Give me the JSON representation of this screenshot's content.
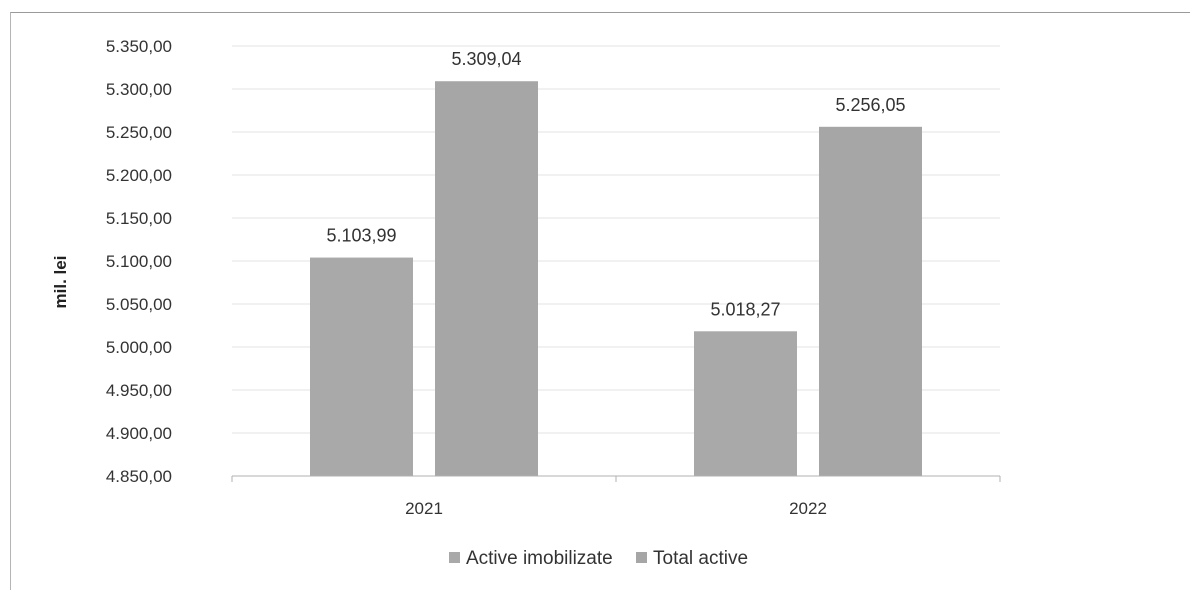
{
  "chart_data": {
    "type": "bar",
    "categories": [
      "2021",
      "2022"
    ],
    "series": [
      {
        "name": "Active imobilizate",
        "values": [
          5103.99,
          5018.27
        ],
        "labels": [
          "5.103,99",
          "5.018,27"
        ],
        "color": "#a9a9a9"
      },
      {
        "name": "Total active",
        "values": [
          5309.04,
          5256.05
        ],
        "labels": [
          "5.309,04",
          "5.256,05"
        ],
        "color": "#a6a6a6"
      }
    ],
    "ylabel": "mil. lei",
    "ylim": [
      4850,
      5350
    ],
    "ytick_values": [
      4850,
      4900,
      4950,
      5000,
      5050,
      5100,
      5150,
      5200,
      5250,
      5300,
      5350
    ],
    "yticks": [
      "4.850,00",
      "4.900,00",
      "4.950,00",
      "5.000,00",
      "5.050,00",
      "5.100,00",
      "5.150,00",
      "5.200,00",
      "5.250,00",
      "5.300,00",
      "5.350,00"
    ],
    "grid": true,
    "legend_position": "bottom"
  }
}
